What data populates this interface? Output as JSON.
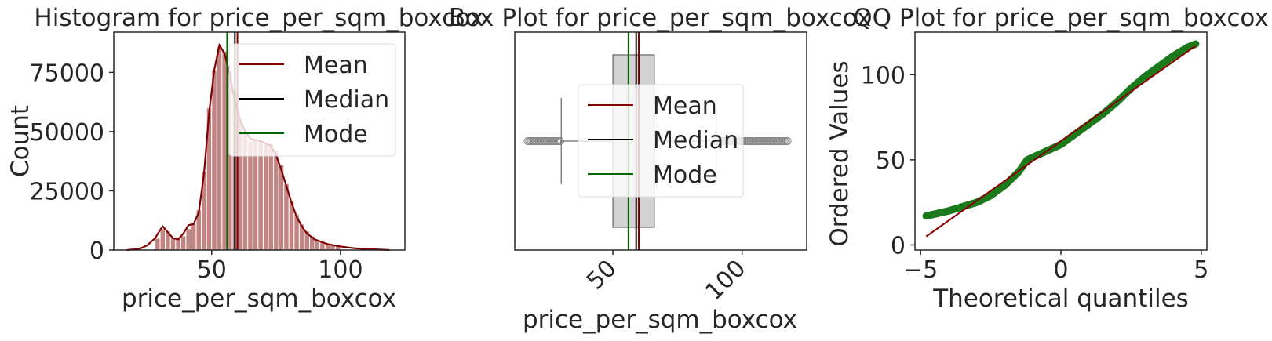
{
  "colors": {
    "mean": "#800000",
    "median": "#000000",
    "mode": "#006400",
    "hist_fill": "#b96e6e",
    "box_fill": "#d3d3d3",
    "box_line": "#808080",
    "qq_points": "#1b7a1b",
    "fit_line": "#8b0000"
  },
  "chart_data": [
    {
      "type": "bar",
      "subtype": "histogram",
      "title": "Histogram for price_per_sqm_boxcox",
      "xlabel": "price_per_sqm_boxcox",
      "ylabel": "Count",
      "xlim": [
        12,
        125
      ],
      "ylim": [
        0,
        92000
      ],
      "xticks": [
        50,
        100
      ],
      "yticks": [
        0,
        25000,
        50000,
        75000
      ],
      "ytick_labels": [
        "0",
        "25000",
        "50000",
        "75000"
      ],
      "bin_width": 2,
      "bins": [
        {
          "x": 29,
          "count": 5000
        },
        {
          "x": 31,
          "count": 9000
        },
        {
          "x": 33,
          "count": 8000
        },
        {
          "x": 35,
          "count": 5500
        },
        {
          "x": 37,
          "count": 5000
        },
        {
          "x": 39,
          "count": 6000
        },
        {
          "x": 41,
          "count": 9000
        },
        {
          "x": 43,
          "count": 11000
        },
        {
          "x": 45,
          "count": 17000
        },
        {
          "x": 47,
          "count": 33000
        },
        {
          "x": 49,
          "count": 60000
        },
        {
          "x": 51,
          "count": 76000
        },
        {
          "x": 53,
          "count": 86000
        },
        {
          "x": 55,
          "count": 84000
        },
        {
          "x": 57,
          "count": 76000
        },
        {
          "x": 59,
          "count": 67000
        },
        {
          "x": 61,
          "count": 55000
        },
        {
          "x": 63,
          "count": 50000
        },
        {
          "x": 65,
          "count": 46000
        },
        {
          "x": 67,
          "count": 47000
        },
        {
          "x": 69,
          "count": 46000
        },
        {
          "x": 71,
          "count": 45000
        },
        {
          "x": 73,
          "count": 45000
        },
        {
          "x": 75,
          "count": 42000
        },
        {
          "x": 77,
          "count": 36000
        },
        {
          "x": 79,
          "count": 28000
        },
        {
          "x": 81,
          "count": 21000
        },
        {
          "x": 83,
          "count": 15000
        },
        {
          "x": 85,
          "count": 11000
        },
        {
          "x": 87,
          "count": 8000
        },
        {
          "x": 89,
          "count": 6000
        },
        {
          "x": 91,
          "count": 4500
        },
        {
          "x": 93,
          "count": 3500
        },
        {
          "x": 95,
          "count": 2800
        },
        {
          "x": 97,
          "count": 2200
        },
        {
          "x": 99,
          "count": 1600
        }
      ],
      "kde": [
        [
          17,
          0
        ],
        [
          22,
          500
        ],
        [
          25,
          2000
        ],
        [
          28,
          5000
        ],
        [
          30,
          8500
        ],
        [
          31,
          10000
        ],
        [
          33,
          7500
        ],
        [
          35,
          5000
        ],
        [
          37,
          4500
        ],
        [
          39,
          7000
        ],
        [
          41,
          10500
        ],
        [
          43,
          11000
        ],
        [
          45,
          16000
        ],
        [
          47,
          32000
        ],
        [
          49,
          58000
        ],
        [
          51,
          76000
        ],
        [
          53,
          86500
        ],
        [
          55,
          83000
        ],
        [
          57,
          74000
        ],
        [
          59,
          63000
        ],
        [
          61,
          55000
        ],
        [
          63,
          50000
        ],
        [
          65,
          47000
        ],
        [
          67,
          46500
        ],
        [
          69,
          46000
        ],
        [
          71,
          45000
        ],
        [
          73,
          44000
        ],
        [
          75,
          40000
        ],
        [
          77,
          34000
        ],
        [
          79,
          27000
        ],
        [
          81,
          20000
        ],
        [
          83,
          14000
        ],
        [
          85,
          10000
        ],
        [
          87,
          7000
        ],
        [
          90,
          4500
        ],
        [
          95,
          2500
        ],
        [
          100,
          1500
        ],
        [
          105,
          800
        ],
        [
          110,
          400
        ],
        [
          115,
          200
        ],
        [
          119,
          0
        ]
      ],
      "mean": 60,
      "median": 59,
      "mode": 56,
      "legend": {
        "position": "upper right",
        "entries": [
          "Mean",
          "Median",
          "Mode"
        ]
      }
    },
    {
      "type": "box",
      "title": "Box Plot for price_per_sqm_boxcox",
      "xlabel": "price_per_sqm_boxcox",
      "xlim": [
        12,
        125
      ],
      "xticks": [
        50,
        100
      ],
      "xtick_rotation": 45,
      "box": {
        "whisker_low": 30,
        "q1": 50,
        "median": 59,
        "q3": 66,
        "whisker_high": 90,
        "outliers_low_range": [
          17,
          30
        ],
        "outliers_high_range": [
          90,
          118
        ]
      },
      "mean": 60,
      "median": 59,
      "mode": 56,
      "legend": {
        "position": "center",
        "entries": [
          "Mean",
          "Median",
          "Mode"
        ]
      }
    },
    {
      "type": "scatter",
      "title": "QQ Plot for price_per_sqm_boxcox",
      "xlabel": "Theoretical quantiles",
      "ylabel": "Ordered Values",
      "xlim": [
        -5.2,
        5.2
      ],
      "ylim": [
        -3,
        125
      ],
      "xticks": [
        -5,
        0,
        5
      ],
      "yticks": [
        0,
        50,
        100
      ],
      "qq_curve": [
        [
          -4.8,
          17
        ],
        [
          -4.0,
          20
        ],
        [
          -3.0,
          25
        ],
        [
          -2.5,
          29
        ],
        [
          -2.0,
          35
        ],
        [
          -1.5,
          43
        ],
        [
          -1.2,
          50
        ],
        [
          -0.8,
          53
        ],
        [
          -0.4,
          56
        ],
        [
          0,
          59
        ],
        [
          0.5,
          65
        ],
        [
          1.0,
          71
        ],
        [
          1.5,
          77
        ],
        [
          2.0,
          84
        ],
        [
          2.5,
          92
        ],
        [
          3.0,
          99
        ],
        [
          3.5,
          105
        ],
        [
          4.0,
          111
        ],
        [
          4.5,
          116
        ],
        [
          4.8,
          118
        ]
      ],
      "fit_line": [
        [
          -4.8,
          5
        ],
        [
          4.8,
          117
        ]
      ]
    }
  ]
}
